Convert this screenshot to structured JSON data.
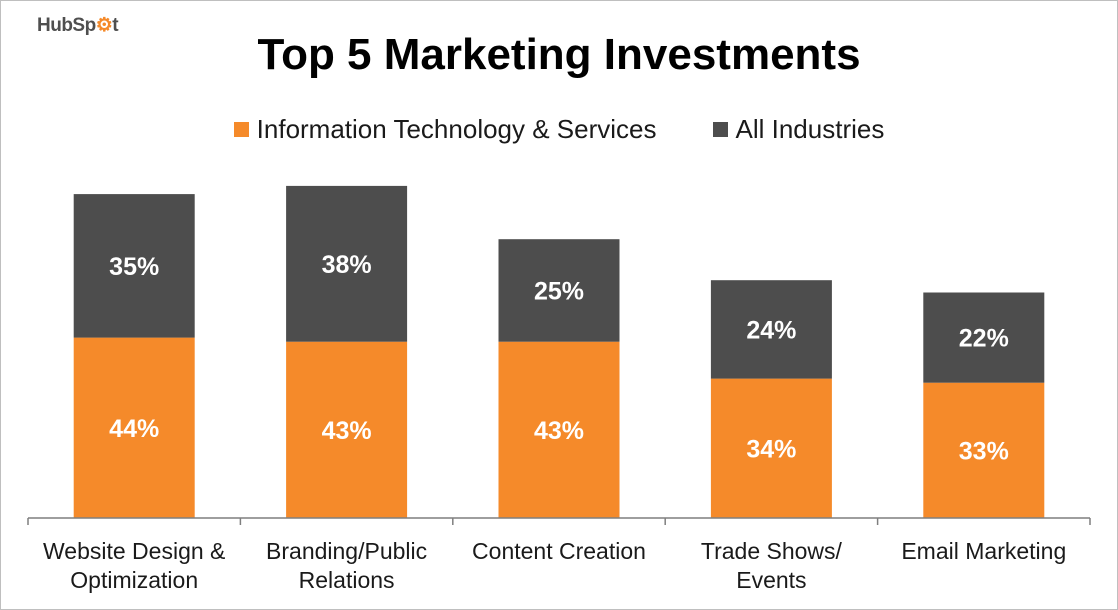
{
  "brand": {
    "name_part1": "HubSp",
    "name_part2": "t"
  },
  "colors": {
    "series1": "#f58a2a",
    "series2": "#4d4d4d",
    "axis": "#7f7f7f"
  },
  "chart_data": {
    "type": "stacked-bar",
    "title": "Top 5 Marketing Investments",
    "categories": [
      [
        "Website Design &",
        "Optimization"
      ],
      [
        "Branding/Public",
        "Relations"
      ],
      [
        "Content Creation"
      ],
      [
        "Trade Shows/",
        "Events"
      ],
      [
        "Email Marketing"
      ]
    ],
    "series": [
      {
        "name": "Information Technology & Services",
        "values": [
          44,
          43,
          43,
          34,
          33
        ],
        "labels": [
          "44%",
          "43%",
          "43%",
          "34%",
          "33%"
        ]
      },
      {
        "name": "All Industries",
        "values": [
          35,
          38,
          25,
          24,
          22
        ],
        "labels": [
          "35%",
          "38%",
          "25%",
          "24%",
          "22%"
        ]
      }
    ],
    "legend_position": "top-center",
    "grid": false,
    "ylim": [
      0,
      81
    ]
  }
}
